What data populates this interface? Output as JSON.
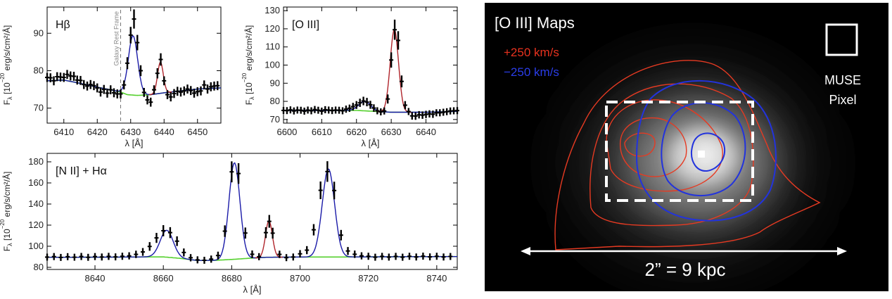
{
  "colors": {
    "data": "#000000",
    "total_fit": "#1a1aa8",
    "oiii_fit": "#b0242b",
    "continuum": "#55d02e",
    "contour_red": "#e63a22",
    "contour_blue": "#2233dd",
    "map_bg": "#000000",
    "white": "#ffffff"
  },
  "chart_data": [
    {
      "type": "line",
      "id": "hbeta",
      "title": "Hβ",
      "xlabel": "λ [Å]",
      "ylabel": "F",
      "ylabel_sub": "λ",
      "ylabel_rest": " [10",
      "ylabel_exp": "−20",
      "ylabel_units": " erg/s/cm²/Å]",
      "xlim": [
        6405,
        6457
      ],
      "ylim": [
        66,
        97
      ],
      "xticks": [
        6410,
        6420,
        6430,
        6440,
        6450
      ],
      "yticks": [
        70,
        80,
        90
      ],
      "annotation": {
        "text": "Galaxy Rest Frame",
        "x": 6427
      },
      "continuum": [
        [
          6405,
          77.3
        ],
        [
          6410,
          77.5
        ],
        [
          6415,
          76.6
        ],
        [
          6420,
          75.6
        ],
        [
          6424,
          74.9
        ],
        [
          6427,
          74.3
        ],
        [
          6429,
          73.6
        ],
        [
          6432,
          73.4
        ],
        [
          6436,
          73.6
        ],
        [
          6440,
          74.1
        ],
        [
          6445,
          74.6
        ],
        [
          6450,
          75.1
        ],
        [
          6457,
          75.4
        ]
      ],
      "lines": [
        {
          "center": 6430.7,
          "amp": 15.8,
          "sigma": 1.4,
          "color": "#1a1aa8"
        },
        {
          "center": 6438.9,
          "amp": 8.3,
          "sigma": 0.85,
          "color": "#b0242b"
        }
      ],
      "points": [
        [
          6405,
          78.2
        ],
        [
          6406,
          78.1
        ],
        [
          6407,
          77.3
        ],
        [
          6408,
          78.4
        ],
        [
          6409,
          78.3
        ],
        [
          6410,
          78.2
        ],
        [
          6411,
          79.0
        ],
        [
          6412,
          78.6
        ],
        [
          6413,
          78.5
        ],
        [
          6414,
          77.5
        ],
        [
          6415,
          77.4
        ],
        [
          6416,
          76.3
        ],
        [
          6417,
          75.9
        ],
        [
          6418,
          76.3
        ],
        [
          6419,
          76.0
        ],
        [
          6420,
          75.4
        ],
        [
          6421,
          74.3
        ],
        [
          6422,
          75.0
        ],
        [
          6423,
          74.0
        ],
        [
          6424,
          74.9
        ],
        [
          6425,
          74.1
        ],
        [
          6426,
          73.8
        ],
        [
          6427,
          73.8
        ],
        [
          6428,
          76.2
        ],
        [
          6429,
          82.0
        ],
        [
          6430,
          89.5
        ],
        [
          6431,
          93.8
        ],
        [
          6432,
          87.5
        ],
        [
          6433,
          80.0
        ],
        [
          6434,
          74.2
        ],
        [
          6435,
          72.2
        ],
        [
          6436,
          71.6
        ],
        [
          6437,
          74.9
        ],
        [
          6438,
          79.3
        ],
        [
          6439,
          83.0
        ],
        [
          6440,
          77.3
        ],
        [
          6441,
          73.6
        ],
        [
          6442,
          73.0
        ],
        [
          6443,
          73.9
        ],
        [
          6444,
          74.5
        ],
        [
          6445,
          74.3
        ],
        [
          6446,
          74.6
        ],
        [
          6447,
          75.1
        ],
        [
          6448,
          74.7
        ],
        [
          6449,
          74.0
        ],
        [
          6450,
          74.4
        ],
        [
          6451,
          74.6
        ],
        [
          6452,
          76.2
        ],
        [
          6453,
          75.1
        ],
        [
          6454,
          75.7
        ],
        [
          6455,
          75.9
        ],
        [
          6456,
          76.0
        ]
      ]
    },
    {
      "type": "line",
      "id": "oiii",
      "title": "[O III]",
      "xlabel": "λ [Å]",
      "ylabel": "F",
      "ylabel_sub": "λ",
      "ylabel_rest": " [10",
      "ylabel_exp": "−20",
      "ylabel_units": " erg/s/cm²/Å]",
      "xlim": [
        6599,
        6649
      ],
      "ylim": [
        68,
        132
      ],
      "xticks": [
        6600,
        6610,
        6620,
        6630,
        6640
      ],
      "yticks": [
        70,
        80,
        90,
        100,
        110,
        120,
        130
      ],
      "continuum": [
        [
          6599,
          75
        ],
        [
          6610,
          75
        ],
        [
          6620,
          75
        ],
        [
          6630,
          74
        ],
        [
          6640,
          74
        ],
        [
          6649,
          74.5
        ]
      ],
      "lines": [
        {
          "center": 6622.4,
          "amp": 5.2,
          "sigma": 1.7,
          "color": "#1a1aa8"
        },
        {
          "center": 6630.9,
          "amp": 45.5,
          "sigma": 1.2,
          "color": "#b0242b"
        }
      ],
      "points": [
        [
          6599,
          75.0
        ],
        [
          6600,
          74.9
        ],
        [
          6601,
          75.3
        ],
        [
          6602,
          74.7
        ],
        [
          6603,
          75.2
        ],
        [
          6604,
          75.1
        ],
        [
          6605,
          74.6
        ],
        [
          6606,
          75.2
        ],
        [
          6607,
          74.8
        ],
        [
          6608,
          75.5
        ],
        [
          6609,
          75.1
        ],
        [
          6610,
          74.6
        ],
        [
          6611,
          75.4
        ],
        [
          6612,
          75.2
        ],
        [
          6613,
          74.9
        ],
        [
          6614,
          75.2
        ],
        [
          6615,
          75.1
        ],
        [
          6616,
          74.8
        ],
        [
          6617,
          75.7
        ],
        [
          6618,
          76.2
        ],
        [
          6619,
          77.1
        ],
        [
          6620,
          78.0
        ],
        [
          6621,
          79.2
        ],
        [
          6622,
          80.2
        ],
        [
          6623,
          79.6
        ],
        [
          6624,
          78.1
        ],
        [
          6625,
          76.3
        ],
        [
          6626,
          74.8
        ],
        [
          6627,
          74.2
        ],
        [
          6628,
          74.7
        ],
        [
          6629,
          81.3
        ],
        [
          6630,
          102.8
        ],
        [
          6631,
          119.5
        ],
        [
          6632,
          113.6
        ],
        [
          6633,
          91.0
        ],
        [
          6634,
          77.9
        ],
        [
          6635,
          74.4
        ],
        [
          6636,
          72.0
        ],
        [
          6637,
          71.9
        ],
        [
          6638,
          72.6
        ],
        [
          6639,
          72.4
        ],
        [
          6640,
          72.8
        ],
        [
          6641,
          73.1
        ],
        [
          6642,
          72.9
        ],
        [
          6643,
          73.7
        ],
        [
          6644,
          73.7
        ],
        [
          6645,
          74.0
        ],
        [
          6646,
          74.3
        ],
        [
          6647,
          74.7
        ],
        [
          6648,
          74.8
        ],
        [
          6649,
          74.9
        ]
      ]
    },
    {
      "type": "line",
      "id": "nii_halpha",
      "title": "[N II] + Hα",
      "xlabel": "λ [Å]",
      "ylabel": "F",
      "ylabel_sub": "λ",
      "ylabel_rest": " [10",
      "ylabel_exp": "−20",
      "ylabel_units": " erg/s/cm²/Å]",
      "xlim": [
        8626,
        8746
      ],
      "ylim": [
        78,
        188
      ],
      "xticks": [
        8640,
        8660,
        8680,
        8700,
        8720,
        8740
      ],
      "yticks": [
        80,
        100,
        120,
        140,
        160,
        180
      ],
      "continuum": [
        [
          8626,
          89.5
        ],
        [
          8640,
          89.6
        ],
        [
          8650,
          89.8
        ],
        [
          8660,
          89.9
        ],
        [
          8665,
          88.5
        ],
        [
          8670,
          86.5
        ],
        [
          8675,
          86.6
        ],
        [
          8680,
          87.5
        ],
        [
          8685,
          88.6
        ],
        [
          8690,
          89.5
        ],
        [
          8700,
          89.8
        ],
        [
          8710,
          89.8
        ],
        [
          8720,
          89.9
        ],
        [
          8730,
          90.1
        ],
        [
          8746,
          90.2
        ]
      ],
      "lines": [
        {
          "center": 8661.0,
          "amp": 25.5,
          "sigma": 1.9,
          "color": "#1a1aa8"
        },
        {
          "center": 8680.8,
          "amp": 91.5,
          "sigma": 1.6,
          "color": "#1a1aa8"
        },
        {
          "center": 8690.9,
          "amp": 34.5,
          "sigma": 1.0,
          "color": "#b0242b"
        },
        {
          "center": 8708.3,
          "amp": 83.5,
          "sigma": 1.8,
          "color": "#1a1aa8"
        }
      ],
      "points": [
        [
          8626,
          89.7
        ],
        [
          8628,
          90.2
        ],
        [
          8630,
          89.4
        ],
        [
          8632,
          90.1
        ],
        [
          8634,
          89.6
        ],
        [
          8636,
          90.3
        ],
        [
          8638,
          89.5
        ],
        [
          8640,
          90.2
        ],
        [
          8642,
          89.8
        ],
        [
          8644,
          90.4
        ],
        [
          8646,
          89.9
        ],
        [
          8648,
          90.5
        ],
        [
          8650,
          90.9
        ],
        [
          8652,
          92.3
        ],
        [
          8654,
          94.6
        ],
        [
          8656,
          99.8
        ],
        [
          8658,
          107.9
        ],
        [
          8660,
          114.7
        ],
        [
          8662,
          112.9
        ],
        [
          8664,
          104.8
        ],
        [
          8666,
          94.1
        ],
        [
          8668,
          89.1
        ],
        [
          8670,
          87.1
        ],
        [
          8672,
          86.7
        ],
        [
          8674,
          87.8
        ],
        [
          8676,
          91.2
        ],
        [
          8678,
          114.3
        ],
        [
          8680,
          170.5
        ],
        [
          8682,
          168.9
        ],
        [
          8684,
          112.5
        ],
        [
          8686,
          92.4
        ],
        [
          8688,
          90.1
        ],
        [
          8690,
          112.9
        ],
        [
          8691,
          123.6
        ],
        [
          8692,
          112.4
        ],
        [
          8694,
          92.3
        ],
        [
          8696,
          89.2
        ],
        [
          8698,
          89.8
        ],
        [
          8700,
          92.8
        ],
        [
          8702,
          96.3
        ],
        [
          8704,
          115.6
        ],
        [
          8706,
          153.0
        ],
        [
          8708,
          170.8
        ],
        [
          8710,
          152.8
        ],
        [
          8712,
          110.5
        ],
        [
          8714,
          95.5
        ],
        [
          8716,
          92.4
        ],
        [
          8718,
          90.9
        ],
        [
          8720,
          90.5
        ],
        [
          8722,
          89.6
        ],
        [
          8724,
          90.4
        ],
        [
          8726,
          89.7
        ],
        [
          8728,
          90.4
        ],
        [
          8730,
          89.6
        ],
        [
          8732,
          90.5
        ],
        [
          8734,
          89.8
        ],
        [
          8736,
          90.6
        ],
        [
          8738,
          89.9
        ],
        [
          8740,
          90.5
        ],
        [
          8742,
          89.8
        ],
        [
          8744,
          90.3
        ]
      ]
    }
  ],
  "map": {
    "title": "[O III] Maps",
    "legend": [
      {
        "label": "+250 km/s",
        "color": "#e63a22"
      },
      {
        "label": "−250 km/s",
        "color": "#2233dd"
      }
    ],
    "pixel_label_line1": "MUSE",
    "pixel_label_line2": "Pixel",
    "scale_label": "2” = 9 kpc"
  }
}
